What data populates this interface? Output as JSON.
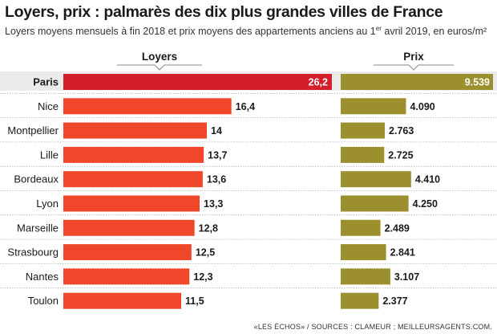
{
  "title": "Loyers, prix : palmarès des dix plus grandes villes de France",
  "subtitle_main": "Loyers moyens mensuels à fin 2018 et prix moyens des appartements anciens au 1",
  "subtitle_sup": "er",
  "subtitle_end": " avril 2019, en euros/m²",
  "footer": "«LES ÉCHOS» / SOURCES : CLAMEUR ; MEILLEURSAGENTS.COM.",
  "colors": {
    "loyers": "#f0472b",
    "loyers_highlight": "#d21f2b",
    "prix": "#9b8f2e",
    "row_band": "#ebebeb",
    "separator": "#b3b3b3"
  },
  "chart_data": {
    "type": "bar",
    "orientation": "horizontal",
    "categories": [
      "Paris",
      "Nice",
      "Montpellier",
      "Lille",
      "Bordeaux",
      "Lyon",
      "Marseille",
      "Strasbourg",
      "Nantes",
      "Toulon"
    ],
    "highlight": "Paris",
    "series": [
      {
        "name": "Loyers",
        "values": [
          26.2,
          16.4,
          14,
          13.7,
          13.6,
          13.3,
          12.8,
          12.5,
          12.3,
          11.5
        ],
        "labels": [
          "26,2",
          "16,4",
          "14",
          "13,7",
          "13,6",
          "13,3",
          "12,8",
          "12,5",
          "12,3",
          "11,5"
        ],
        "xlim": [
          0,
          26.2
        ]
      },
      {
        "name": "Prix",
        "values": [
          9539,
          4090,
          2763,
          2725,
          4410,
          4250,
          2489,
          2841,
          3107,
          2377
        ],
        "labels": [
          "9.539",
          "4.090",
          "2.763",
          "2.725",
          "4.410",
          "4.250",
          "2.489",
          "2.841",
          "3.107",
          "2.377"
        ],
        "xlim": [
          0,
          9539
        ]
      }
    ]
  }
}
